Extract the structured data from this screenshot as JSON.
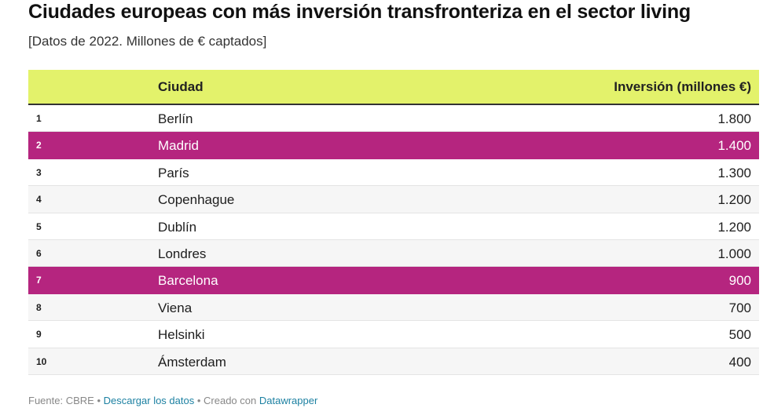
{
  "title": "Ciudades europeas con más inversión transfronteriza en el sector living",
  "subtitle": "[Datos de 2022. Millones de € captados]",
  "colors": {
    "header_bg": "#e3f26b",
    "highlight_bg": "#b5257f",
    "link": "#1d81a2"
  },
  "chart_data": {
    "type": "table",
    "columns": [
      "",
      "Ciudad",
      "Inversión (millones €)"
    ],
    "rows": [
      {
        "rank": "1",
        "city": "Berlín",
        "value": "1.800",
        "highlight": false
      },
      {
        "rank": "2",
        "city": "Madrid",
        "value": "1.400",
        "highlight": true
      },
      {
        "rank": "3",
        "city": "París",
        "value": "1.300",
        "highlight": false
      },
      {
        "rank": "4",
        "city": "Copenhague",
        "value": "1.200",
        "highlight": false
      },
      {
        "rank": "5",
        "city": "Dublín",
        "value": "1.200",
        "highlight": false
      },
      {
        "rank": "6",
        "city": "Londres",
        "value": "1.000",
        "highlight": false
      },
      {
        "rank": "7",
        "city": "Barcelona",
        "value": "900",
        "highlight": true
      },
      {
        "rank": "8",
        "city": "Viena",
        "value": "700",
        "highlight": false
      },
      {
        "rank": "9",
        "city": "Helsinki",
        "value": "500",
        "highlight": false
      },
      {
        "rank": "10",
        "city": "Ámsterdam",
        "value": "400",
        "highlight": false
      }
    ]
  },
  "footer": {
    "source": "Fuente: CBRE",
    "separator": " • ",
    "download_label": "Descargar los datos",
    "created_with": "Creado con",
    "tool_label": "Datawrapper"
  }
}
